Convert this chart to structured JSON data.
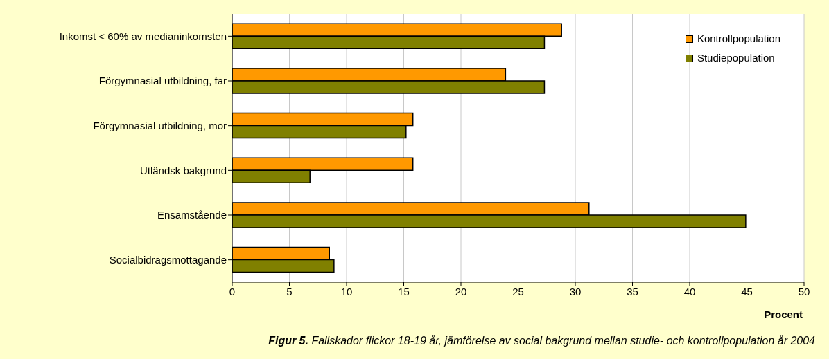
{
  "chart_data": {
    "type": "bar",
    "orientation": "horizontal",
    "title": "Figur 5.",
    "subtitle": "Fallskador flickor 18-19 år, jämförelse av social bakgrund mellan studie- och kontrollpopulation år 2004",
    "xlabel": "Procent",
    "categories": [
      "Inkomst < 60% av medianinkomsten",
      "Förgymnasial utbildning, far",
      "Förgymnasial utbildning, mor",
      "Utländsk bakgrund",
      "Ensamstående",
      "Socialbidragsmottagande"
    ],
    "series": [
      {
        "name": "Kontrollpopulation",
        "color": "#ff9900",
        "values": [
          28.8,
          23.9,
          15.8,
          15.8,
          31.2,
          8.5
        ]
      },
      {
        "name": "Studiepopulation",
        "color": "#808000",
        "values": [
          27.3,
          27.3,
          15.2,
          6.8,
          44.9,
          8.9
        ]
      }
    ],
    "xlim": [
      0,
      50
    ],
    "xticks": [
      0,
      5,
      10,
      15,
      20,
      25,
      30,
      35,
      40,
      45,
      50
    ],
    "grid": "x",
    "legend": "top right"
  }
}
